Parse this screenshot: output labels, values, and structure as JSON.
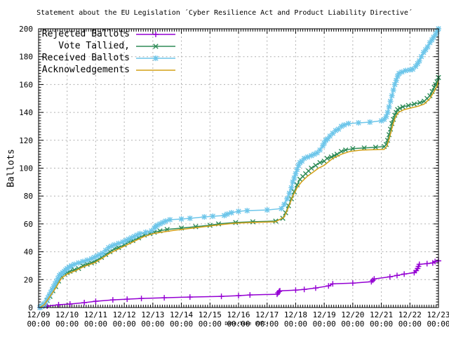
{
  "chart_data": {
    "type": "line",
    "title": "Statement about the EU Legislation ´Cyber Resilience Act and Product Liability Directive´",
    "xlabel": "Date/Time (UTC)",
    "ylabel": "Ballots",
    "ylim": [
      0,
      200
    ],
    "y_tick_step": 20,
    "grid": true,
    "legend_position": "top-left",
    "x_tick_labels": [
      "12/09",
      "12/10",
      "12/11",
      "12/12",
      "12/13",
      "12/14",
      "12/15",
      "12/16",
      "12/17",
      "12/18",
      "12/19",
      "12/20",
      "12/21",
      "12/22",
      "12/23"
    ],
    "x_tick_sublabel": "00:00",
    "x_range_days": [
      0,
      14
    ],
    "series": [
      {
        "name": "Rejected Ballots",
        "color": "#9400d3",
        "marker": "plus",
        "points": [
          [
            0.05,
            0
          ],
          [
            0.3,
            1
          ],
          [
            0.7,
            2
          ],
          [
            1.1,
            2.5
          ],
          [
            1.6,
            3.5
          ],
          [
            2.0,
            4.5
          ],
          [
            2.6,
            5.5
          ],
          [
            3.1,
            6
          ],
          [
            3.6,
            6.5
          ],
          [
            4.4,
            7
          ],
          [
            5.3,
            7.5
          ],
          [
            6.4,
            8
          ],
          [
            7.0,
            8.5
          ],
          [
            7.4,
            9
          ],
          [
            8.35,
            9.5
          ],
          [
            8.38,
            10.5
          ],
          [
            8.42,
            11.5
          ],
          [
            8.45,
            12
          ],
          [
            9.0,
            12.5
          ],
          [
            9.3,
            13
          ],
          [
            9.7,
            14
          ],
          [
            10.15,
            15.5
          ],
          [
            10.3,
            17
          ],
          [
            11.0,
            17.5
          ],
          [
            11.65,
            18.5
          ],
          [
            11.7,
            19.5
          ],
          [
            11.75,
            20.5
          ],
          [
            12.3,
            22
          ],
          [
            12.55,
            23
          ],
          [
            12.8,
            24
          ],
          [
            13.15,
            25
          ],
          [
            13.22,
            26.5
          ],
          [
            13.27,
            28
          ],
          [
            13.3,
            29.5
          ],
          [
            13.33,
            31
          ],
          [
            13.6,
            31.5
          ],
          [
            13.8,
            32
          ],
          [
            13.88,
            33
          ],
          [
            14.0,
            33.5
          ]
        ]
      },
      {
        "name": "Vote Tallied,",
        "color": "#2e8b57",
        "marker": "cross",
        "points": [
          [
            0.05,
            0
          ],
          [
            0.12,
            1
          ],
          [
            0.2,
            2
          ],
          [
            0.3,
            5
          ],
          [
            0.4,
            8
          ],
          [
            0.5,
            12
          ],
          [
            0.6,
            15
          ],
          [
            0.7,
            19
          ],
          [
            0.8,
            22
          ],
          [
            0.9,
            24
          ],
          [
            1.0,
            25
          ],
          [
            1.1,
            26
          ],
          [
            1.25,
            27
          ],
          [
            1.4,
            28
          ],
          [
            1.55,
            30
          ],
          [
            1.7,
            31
          ],
          [
            1.85,
            32
          ],
          [
            1.95,
            33
          ],
          [
            2.05,
            34
          ],
          [
            2.2,
            36
          ],
          [
            2.35,
            38
          ],
          [
            2.5,
            40
          ],
          [
            2.65,
            42
          ],
          [
            2.8,
            43
          ],
          [
            3.0,
            45
          ],
          [
            3.15,
            47
          ],
          [
            3.3,
            48
          ],
          [
            3.5,
            50
          ],
          [
            3.7,
            52
          ],
          [
            3.9,
            53
          ],
          [
            4.05,
            54
          ],
          [
            4.25,
            55
          ],
          [
            4.5,
            56
          ],
          [
            5.0,
            57
          ],
          [
            5.5,
            58
          ],
          [
            6.0,
            59
          ],
          [
            6.3,
            60
          ],
          [
            6.9,
            61
          ],
          [
            7.5,
            61.5
          ],
          [
            8.3,
            62
          ],
          [
            8.55,
            64
          ],
          [
            8.65,
            68
          ],
          [
            8.75,
            73
          ],
          [
            8.85,
            78
          ],
          [
            8.95,
            83
          ],
          [
            9.05,
            88
          ],
          [
            9.15,
            92
          ],
          [
            9.25,
            94
          ],
          [
            9.35,
            96
          ],
          [
            9.45,
            98
          ],
          [
            9.55,
            100
          ],
          [
            9.7,
            102
          ],
          [
            9.85,
            104
          ],
          [
            10.0,
            105
          ],
          [
            10.1,
            107
          ],
          [
            10.25,
            108
          ],
          [
            10.35,
            109
          ],
          [
            10.45,
            110
          ],
          [
            10.6,
            112
          ],
          [
            10.75,
            113
          ],
          [
            11.0,
            114
          ],
          [
            11.4,
            114.5
          ],
          [
            11.8,
            115
          ],
          [
            12.1,
            115.5
          ],
          [
            12.17,
            117
          ],
          [
            12.22,
            120
          ],
          [
            12.27,
            124
          ],
          [
            12.32,
            128
          ],
          [
            12.37,
            132
          ],
          [
            12.42,
            135
          ],
          [
            12.47,
            138
          ],
          [
            12.52,
            140
          ],
          [
            12.57,
            142
          ],
          [
            12.65,
            143
          ],
          [
            12.75,
            144
          ],
          [
            12.95,
            145
          ],
          [
            13.15,
            146
          ],
          [
            13.35,
            147
          ],
          [
            13.5,
            148
          ],
          [
            13.6,
            150
          ],
          [
            13.7,
            152
          ],
          [
            13.78,
            155
          ],
          [
            13.85,
            158
          ],
          [
            13.9,
            160
          ],
          [
            13.95,
            162
          ],
          [
            14.0,
            165
          ]
        ]
      },
      {
        "name": "Received Ballots",
        "color": "#6ec6ea",
        "marker": "asterisk",
        "points": [
          [
            0.05,
            0
          ],
          [
            0.1,
            1
          ],
          [
            0.18,
            2
          ],
          [
            0.22,
            3
          ],
          [
            0.28,
            5
          ],
          [
            0.33,
            7
          ],
          [
            0.38,
            9
          ],
          [
            0.43,
            11
          ],
          [
            0.48,
            13
          ],
          [
            0.53,
            15
          ],
          [
            0.58,
            17
          ],
          [
            0.63,
            19
          ],
          [
            0.68,
            21
          ],
          [
            0.73,
            23
          ],
          [
            0.78,
            24
          ],
          [
            0.85,
            25
          ],
          [
            0.9,
            26
          ],
          [
            0.95,
            27
          ],
          [
            1.0,
            28
          ],
          [
            1.08,
            29
          ],
          [
            1.15,
            30
          ],
          [
            1.25,
            31
          ],
          [
            1.4,
            32
          ],
          [
            1.55,
            33
          ],
          [
            1.7,
            34
          ],
          [
            1.85,
            35
          ],
          [
            1.95,
            36
          ],
          [
            2.05,
            37
          ],
          [
            2.15,
            38
          ],
          [
            2.25,
            39
          ],
          [
            2.35,
            41
          ],
          [
            2.45,
            43
          ],
          [
            2.55,
            44
          ],
          [
            2.65,
            45
          ],
          [
            2.8,
            46
          ],
          [
            2.95,
            47
          ],
          [
            3.05,
            48
          ],
          [
            3.15,
            49
          ],
          [
            3.25,
            50
          ],
          [
            3.35,
            51
          ],
          [
            3.45,
            52
          ],
          [
            3.55,
            53
          ],
          [
            3.75,
            54
          ],
          [
            3.95,
            55
          ],
          [
            4.05,
            57
          ],
          [
            4.1,
            58
          ],
          [
            4.15,
            59
          ],
          [
            4.25,
            60
          ],
          [
            4.35,
            61
          ],
          [
            4.45,
            62
          ],
          [
            4.6,
            63
          ],
          [
            5.0,
            63.5
          ],
          [
            5.3,
            64
          ],
          [
            5.8,
            65
          ],
          [
            6.1,
            65.5
          ],
          [
            6.5,
            66
          ],
          [
            6.6,
            67
          ],
          [
            6.75,
            68
          ],
          [
            7.0,
            69
          ],
          [
            7.3,
            69.5
          ],
          [
            8.0,
            70
          ],
          [
            8.5,
            71
          ],
          [
            8.6,
            74
          ],
          [
            8.7,
            78
          ],
          [
            8.78,
            82
          ],
          [
            8.85,
            86
          ],
          [
            8.9,
            90
          ],
          [
            8.95,
            93
          ],
          [
            9.0,
            96
          ],
          [
            9.05,
            99
          ],
          [
            9.1,
            102
          ],
          [
            9.15,
            104
          ],
          [
            9.22,
            105
          ],
          [
            9.3,
            107
          ],
          [
            9.42,
            108
          ],
          [
            9.55,
            109
          ],
          [
            9.65,
            110
          ],
          [
            9.75,
            111
          ],
          [
            9.85,
            113
          ],
          [
            9.95,
            116
          ],
          [
            10.0,
            118
          ],
          [
            10.05,
            120
          ],
          [
            10.12,
            121
          ],
          [
            10.2,
            123
          ],
          [
            10.3,
            125
          ],
          [
            10.4,
            127
          ],
          [
            10.5,
            128
          ],
          [
            10.6,
            130
          ],
          [
            10.7,
            131
          ],
          [
            10.85,
            132
          ],
          [
            11.2,
            132.5
          ],
          [
            11.6,
            133
          ],
          [
            12.0,
            134
          ],
          [
            12.1,
            135
          ],
          [
            12.17,
            137
          ],
          [
            12.22,
            140
          ],
          [
            12.27,
            144
          ],
          [
            12.32,
            148
          ],
          [
            12.37,
            152
          ],
          [
            12.42,
            156
          ],
          [
            12.47,
            160
          ],
          [
            12.52,
            163
          ],
          [
            12.57,
            166
          ],
          [
            12.62,
            168
          ],
          [
            12.72,
            169
          ],
          [
            12.85,
            170
          ],
          [
            13.0,
            170.5
          ],
          [
            13.1,
            171
          ],
          [
            13.2,
            173
          ],
          [
            13.27,
            175
          ],
          [
            13.33,
            177
          ],
          [
            13.4,
            180
          ],
          [
            13.48,
            183
          ],
          [
            13.55,
            185
          ],
          [
            13.62,
            187
          ],
          [
            13.7,
            190
          ],
          [
            13.77,
            192
          ],
          [
            13.83,
            194
          ],
          [
            13.9,
            196
          ],
          [
            13.95,
            198
          ],
          [
            14.0,
            200
          ]
        ]
      },
      {
        "name": "Acknowledgements",
        "color": "#d4a017",
        "marker": "none",
        "points": [
          [
            0.05,
            0
          ],
          [
            0.2,
            2
          ],
          [
            0.4,
            8
          ],
          [
            0.6,
            14
          ],
          [
            0.8,
            21
          ],
          [
            1.0,
            24
          ],
          [
            1.3,
            26.5
          ],
          [
            1.6,
            29.5
          ],
          [
            1.95,
            32
          ],
          [
            2.2,
            35
          ],
          [
            2.5,
            39
          ],
          [
            2.8,
            42
          ],
          [
            3.1,
            45
          ],
          [
            3.4,
            48
          ],
          [
            3.7,
            51
          ],
          [
            4.0,
            53
          ],
          [
            4.3,
            54
          ],
          [
            4.8,
            55.5
          ],
          [
            5.4,
            57
          ],
          [
            6.0,
            58.5
          ],
          [
            6.4,
            59.5
          ],
          [
            6.9,
            60.5
          ],
          [
            7.5,
            61
          ],
          [
            8.3,
            61.5
          ],
          [
            8.6,
            65
          ],
          [
            8.75,
            72
          ],
          [
            8.9,
            80
          ],
          [
            9.05,
            86
          ],
          [
            9.2,
            90
          ],
          [
            9.4,
            94
          ],
          [
            9.6,
            97
          ],
          [
            9.8,
            100
          ],
          [
            10.0,
            102
          ],
          [
            10.3,
            107
          ],
          [
            10.6,
            110
          ],
          [
            10.9,
            112
          ],
          [
            11.3,
            113
          ],
          [
            12.1,
            113.5
          ],
          [
            12.2,
            116
          ],
          [
            12.3,
            123
          ],
          [
            12.4,
            131
          ],
          [
            12.5,
            137
          ],
          [
            12.6,
            140
          ],
          [
            12.8,
            142
          ],
          [
            13.0,
            143
          ],
          [
            13.3,
            144.5
          ],
          [
            13.5,
            146
          ],
          [
            13.7,
            150
          ],
          [
            13.85,
            155
          ],
          [
            13.95,
            159
          ],
          [
            14.0,
            163
          ]
        ]
      }
    ],
    "style": {
      "grid_color": "#b0b0b0",
      "border_color": "#000000",
      "background": "#ffffff"
    }
  }
}
